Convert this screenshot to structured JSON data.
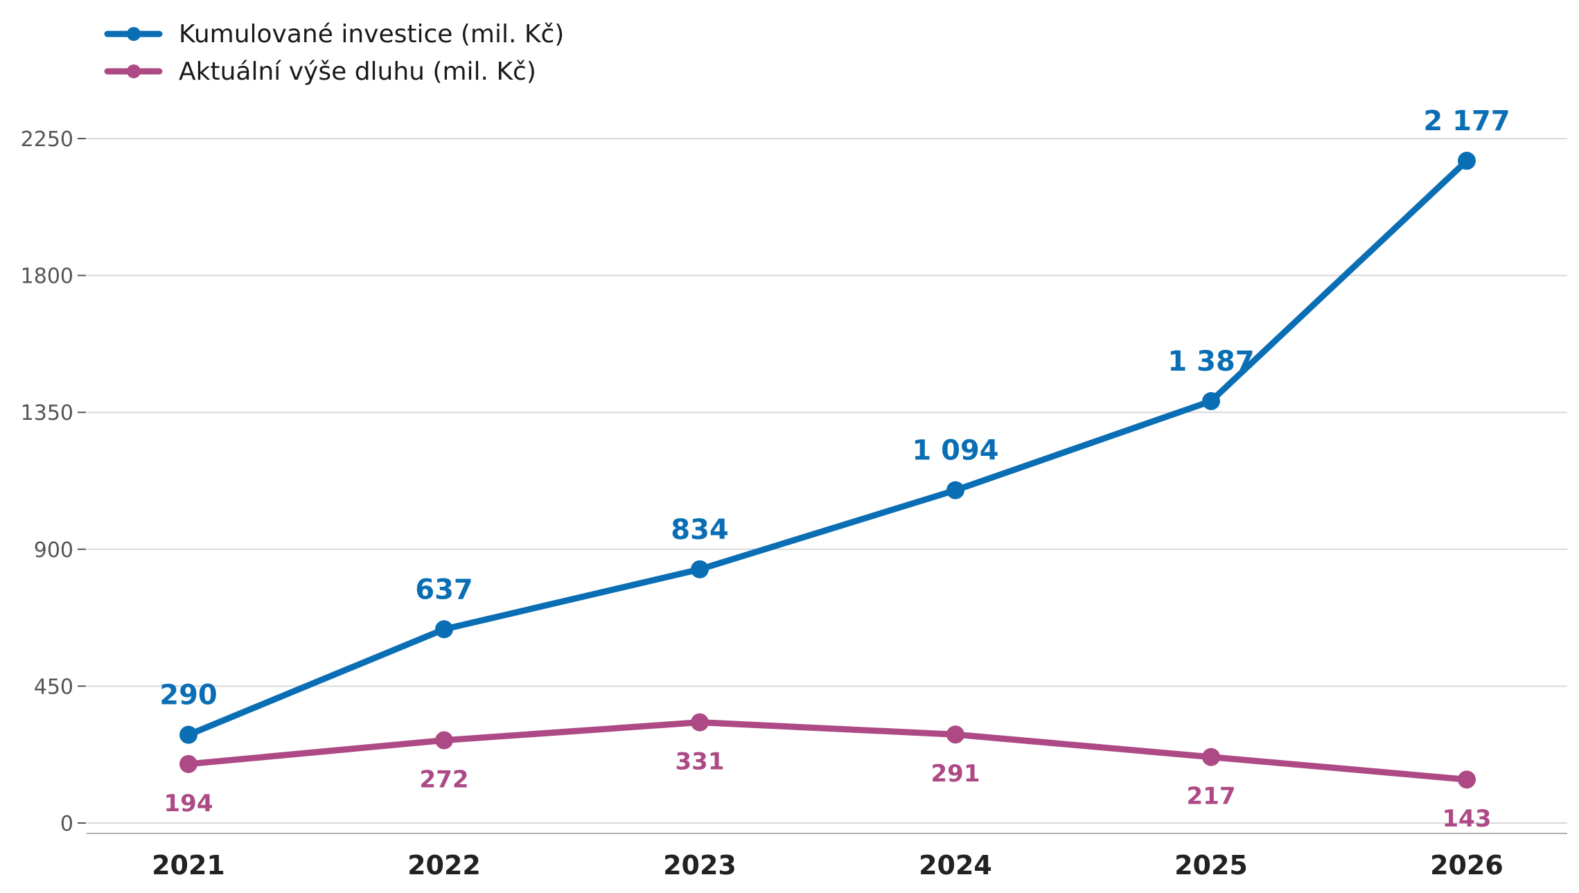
{
  "chart_data": {
    "type": "line",
    "categories": [
      "2021",
      "2022",
      "2023",
      "2024",
      "2025",
      "2026"
    ],
    "ylim": [
      0,
      2250
    ],
    "yticks": [
      "0",
      "450",
      "900",
      "1350",
      "1800",
      "2250"
    ],
    "grid": true,
    "legend_position": "top-left",
    "series": [
      {
        "name": "Kumulované investice (mil. Kč)",
        "color": "#0a6eb4",
        "values": [
          290,
          637,
          834,
          1094,
          1387,
          2177
        ],
        "labels": [
          "290",
          "637",
          "834",
          "1 094",
          "1 387",
          "2 177"
        ]
      },
      {
        "name": "Aktuální výše dluhu (mil. Kč)",
        "color": "#ad4a85",
        "values": [
          194,
          272,
          331,
          291,
          217,
          143
        ],
        "labels": [
          "194",
          "272",
          "331",
          "291",
          "217",
          "143"
        ]
      }
    ]
  }
}
